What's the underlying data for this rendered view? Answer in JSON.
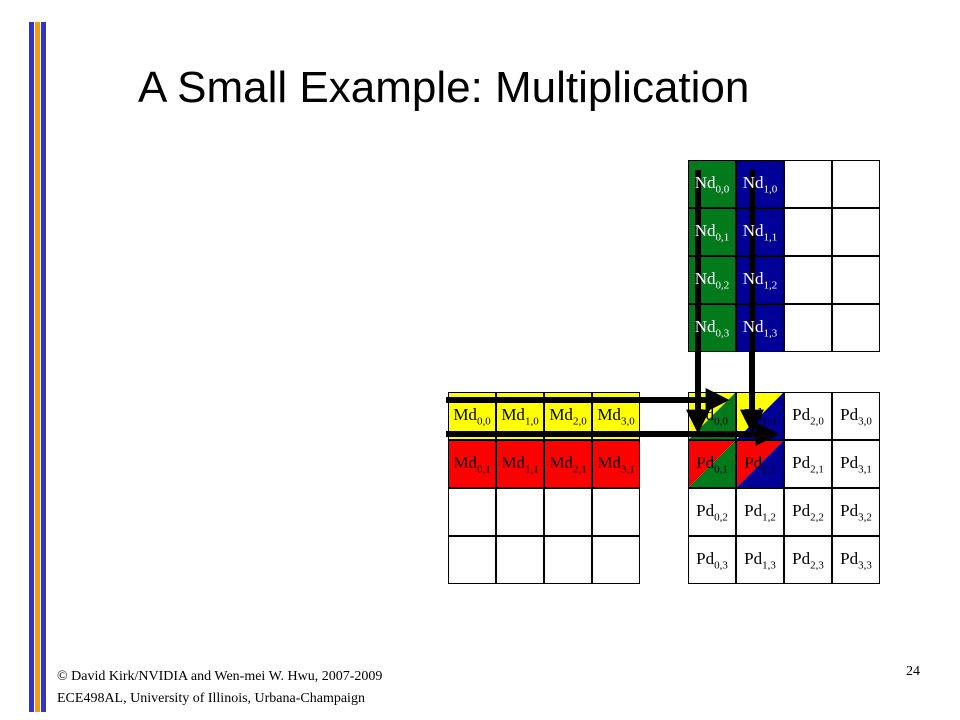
{
  "colors": {
    "bar_blue": "#3333cc",
    "bar_orange": "#ff9900",
    "green": "#007a1a",
    "navy": "#000099",
    "yellow": "#ffff00",
    "red": "#ff0000"
  },
  "title": "A Small Example: Multiplication",
  "n_matrix": {
    "cells": [
      {
        "base": "Nd",
        "sub": "0,0",
        "color": "green"
      },
      {
        "base": "Nd",
        "sub": "1,0",
        "color": "navy"
      },
      {
        "base": "",
        "sub": "",
        "color": "white"
      },
      {
        "base": "",
        "sub": "",
        "color": "white"
      },
      {
        "base": "Nd",
        "sub": "0,1",
        "color": "green"
      },
      {
        "base": "Nd",
        "sub": "1,1",
        "color": "navy"
      },
      {
        "base": "",
        "sub": "",
        "color": "white"
      },
      {
        "base": "",
        "sub": "",
        "color": "white"
      },
      {
        "base": "Nd",
        "sub": "0,2",
        "color": "green"
      },
      {
        "base": "Nd",
        "sub": "1,2",
        "color": "navy"
      },
      {
        "base": "",
        "sub": "",
        "color": "white"
      },
      {
        "base": "",
        "sub": "",
        "color": "white"
      },
      {
        "base": "Nd",
        "sub": "0,3",
        "color": "green"
      },
      {
        "base": "Nd",
        "sub": "1,3",
        "color": "navy"
      },
      {
        "base": "",
        "sub": "",
        "color": "white"
      },
      {
        "base": "",
        "sub": "",
        "color": "white"
      }
    ]
  },
  "m_matrix": {
    "cells": [
      {
        "base": "Md",
        "sub": "0,0",
        "color": "yellow"
      },
      {
        "base": "Md",
        "sub": "1,0",
        "color": "yellow"
      },
      {
        "base": "Md",
        "sub": "2,0",
        "color": "yellow"
      },
      {
        "base": "Md",
        "sub": "3,0",
        "color": "yellow"
      },
      {
        "base": "Md",
        "sub": "0,1",
        "color": "red"
      },
      {
        "base": "Md",
        "sub": "1,1",
        "color": "red"
      },
      {
        "base": "Md",
        "sub": "2,1",
        "color": "red"
      },
      {
        "base": "Md",
        "sub": "3,1",
        "color": "red"
      },
      {
        "base": "",
        "sub": "",
        "color": "white"
      },
      {
        "base": "",
        "sub": "",
        "color": "white"
      },
      {
        "base": "",
        "sub": "",
        "color": "white"
      },
      {
        "base": "",
        "sub": "",
        "color": "white"
      },
      {
        "base": "",
        "sub": "",
        "color": "white"
      },
      {
        "base": "",
        "sub": "",
        "color": "white"
      },
      {
        "base": "",
        "sub": "",
        "color": "white"
      },
      {
        "base": "",
        "sub": "",
        "color": "white"
      }
    ]
  },
  "p_matrix": {
    "cells": [
      {
        "base": "Pd",
        "sub": "0,0",
        "split": [
          "yellow",
          "green"
        ]
      },
      {
        "base": "Pd",
        "sub": "1,0",
        "split": [
          "yellow",
          "navy"
        ]
      },
      {
        "base": "Pd",
        "sub": "2,0",
        "color": "white"
      },
      {
        "base": "Pd",
        "sub": "3,0",
        "color": "white"
      },
      {
        "base": "Pd",
        "sub": "0,1",
        "split": [
          "red",
          "green"
        ]
      },
      {
        "base": "Pd",
        "sub": "1,1",
        "split": [
          "red",
          "navy"
        ]
      },
      {
        "base": "Pd",
        "sub": "2,1",
        "color": "white"
      },
      {
        "base": "Pd",
        "sub": "3,1",
        "color": "white"
      },
      {
        "base": "Pd",
        "sub": "0,2",
        "color": "white"
      },
      {
        "base": "Pd",
        "sub": "1,2",
        "color": "white"
      },
      {
        "base": "Pd",
        "sub": "2,2",
        "color": "white"
      },
      {
        "base": "Pd",
        "sub": "3,2",
        "color": "white"
      },
      {
        "base": "Pd",
        "sub": "0,3",
        "color": "white"
      },
      {
        "base": "Pd",
        "sub": "1,3",
        "color": "white"
      },
      {
        "base": "Pd",
        "sub": "2,3",
        "color": "white"
      },
      {
        "base": "Pd",
        "sub": "3,3",
        "color": "white"
      }
    ]
  },
  "footer": {
    "line1": "© David Kirk/NVIDIA and Wen-mei W. Hwu, 2007-2009",
    "line2": "ECE498AL, University of Illinois, Urbana-Champaign",
    "page_number": "24"
  }
}
